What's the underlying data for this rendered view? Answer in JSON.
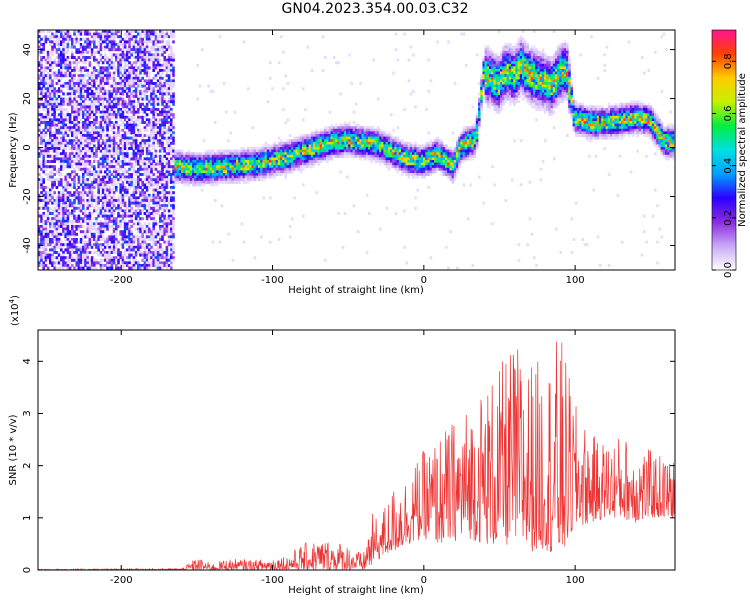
{
  "title": "GN04.2023.354.00.03.C32",
  "chart_data": [
    {
      "type": "heatmap",
      "xlabel": "Height of straight line (km)",
      "ylabel": "Frequency (Hz)",
      "xlim": [
        -255,
        166
      ],
      "ylim": [
        -50,
        48
      ],
      "xticks": [
        -200,
        -100,
        0,
        100
      ],
      "yticks": [
        -40,
        -20,
        0,
        20,
        40
      ],
      "colorbar": {
        "label": "Normalized spectral amplitude",
        "range": [
          0.0,
          0.92
        ],
        "ticks": [
          "0.0",
          "0.2",
          "0.4",
          "0.6",
          "0.8"
        ],
        "colormap": [
          "#ffffff",
          "#c9a8f5",
          "#8a2be2",
          "#2a00ff",
          "#00a0ff",
          "#00e0e0",
          "#00ee40",
          "#c8f000",
          "#ffcc00",
          "#ff4000",
          "#ff1493"
        ]
      },
      "ridge": {
        "x": [
          -165,
          -150,
          -130,
          -110,
          -90,
          -70,
          -60,
          -50,
          -40,
          -30,
          -20,
          -10,
          0,
          10,
          20,
          25,
          30,
          35,
          40,
          45,
          50,
          55,
          60,
          65,
          70,
          75,
          80,
          85,
          90,
          95,
          100,
          110,
          120,
          130,
          140,
          150,
          160
        ],
        "freq_hz": [
          -8,
          -9,
          -8,
          -7,
          -4,
          0,
          2,
          3,
          2,
          1,
          -2,
          -5,
          -6,
          -3,
          -8,
          0,
          2,
          3,
          30,
          28,
          26,
          31,
          29,
          33,
          30,
          28,
          27,
          25,
          30,
          32,
          12,
          10,
          10,
          11,
          12,
          11,
          2
        ]
      }
    },
    {
      "type": "line",
      "xlabel": "Height of straight line (km)",
      "ylabel": "SNR (10 * v/v)",
      "y_scale_label": "(x10",
      "y_scale_exp": "4",
      "y_scale_close": ")",
      "xlim": [
        -255,
        166
      ],
      "ylim": [
        0,
        4.6
      ],
      "xticks": [
        -200,
        -100,
        0,
        100
      ],
      "yticks": [
        0,
        1,
        2,
        3,
        4
      ],
      "color": "#ee3333",
      "envelope": {
        "x": [
          -255,
          -160,
          -150,
          -140,
          -130,
          -110,
          -90,
          -80,
          -70,
          -60,
          -50,
          -40,
          -35,
          -30,
          -20,
          -10,
          0,
          10,
          20,
          30,
          40,
          50,
          60,
          70,
          80,
          90,
          100,
          110,
          120,
          130,
          140,
          150,
          166
        ],
        "y_max": [
          0.02,
          0.03,
          0.25,
          0.12,
          0.22,
          0.2,
          0.3,
          0.5,
          0.6,
          0.58,
          0.5,
          0.3,
          1.1,
          1.0,
          1.6,
          1.9,
          2.3,
          2.6,
          2.9,
          3.2,
          3.6,
          3.9,
          4.4,
          4.1,
          4.0,
          4.6,
          3.2,
          2.6,
          2.5,
          2.6,
          2.5,
          2.3,
          2.1
        ],
        "y_min": [
          0.0,
          0.0,
          0.0,
          0.0,
          0.0,
          0.0,
          0.0,
          0.0,
          0.0,
          0.0,
          0.0,
          0.0,
          0.05,
          0.2,
          0.35,
          0.5,
          0.6,
          0.5,
          0.55,
          0.6,
          0.5,
          0.45,
          0.5,
          0.35,
          0.4,
          0.2,
          0.8,
          0.9,
          1.0,
          1.0,
          0.9,
          1.0,
          1.0
        ]
      }
    }
  ]
}
